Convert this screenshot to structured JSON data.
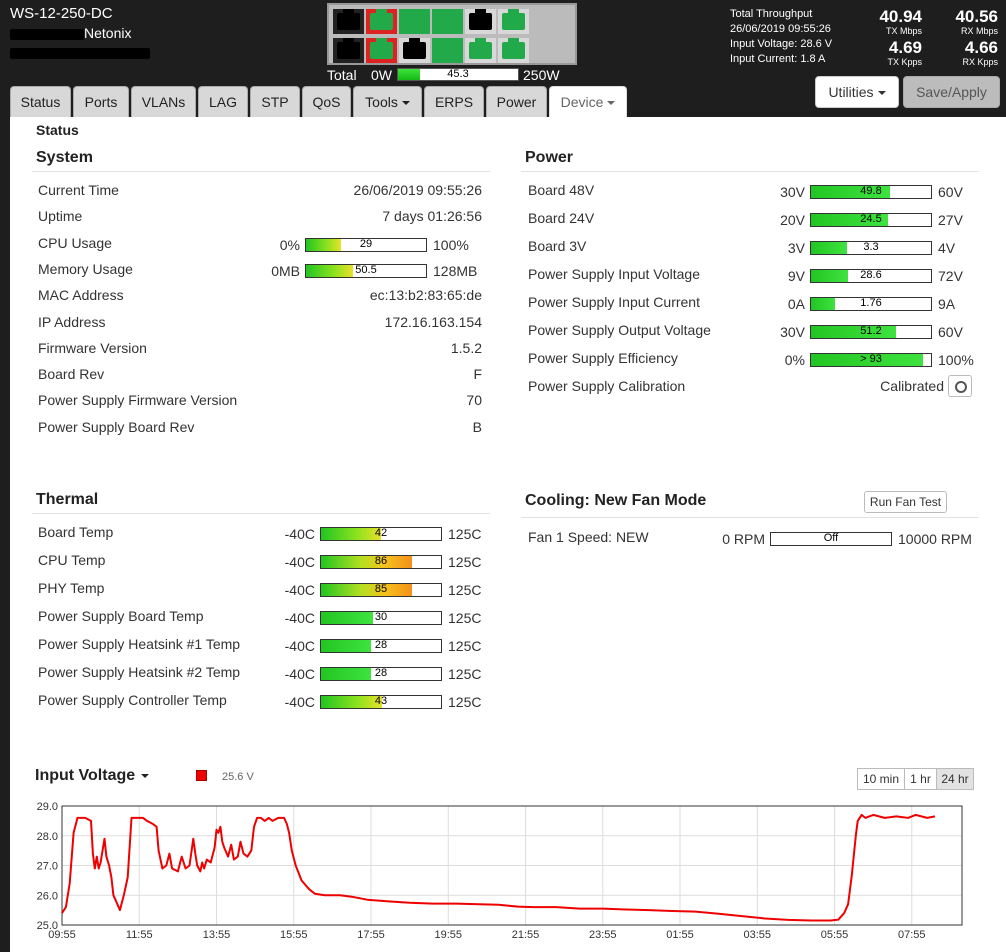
{
  "header": {
    "device_name": "WS-12-250-DC",
    "vendor": "Netonix",
    "power_total_label": "Total",
    "power_min": "0W",
    "power_value": "45.3",
    "power_fraction": 0.181,
    "power_max": "250W",
    "throughput_title": "Total Throughput",
    "datetime": "26/06/2019 09:55:26",
    "input_voltage": "Input Voltage: 28.6 V",
    "input_current": "Input Current: 1.8 A",
    "tx_mbps": "40.94",
    "tx_mbps_unit": "TX Mbps",
    "rx_mbps": "40.56",
    "rx_mbps_unit": "RX Mbps",
    "tx_kpps": "4.69",
    "tx_kpps_unit": "TX Kpps",
    "rx_kpps": "4.66",
    "rx_kpps_unit": "RX Kpps",
    "utilities_label": "Utilities",
    "save_label": "Save/Apply"
  },
  "ports": [
    {
      "color": "#000000",
      "border": "#222222"
    },
    {
      "color": "#22aa4a",
      "border": "#dd2222"
    },
    {
      "color": "#22aa4a",
      "border": "#22aa4a"
    },
    {
      "color": "#22aa4a",
      "border": "#22aa4a"
    },
    {
      "color": "#000000",
      "border": "#d8d8d8"
    },
    {
      "color": "#22aa4a",
      "border": "#d8d8d8"
    },
    {
      "color": "#000000",
      "border": "#222222"
    },
    {
      "color": "#22aa4a",
      "border": "#dd2222"
    },
    {
      "color": "#000000",
      "border": "#d8d8d8"
    },
    {
      "color": "#22aa4a",
      "border": "#22aa4a"
    },
    {
      "color": "#22aa4a",
      "border": "#d8d8d8"
    },
    {
      "color": "#22aa4a",
      "border": "#d8d8d8"
    }
  ],
  "tabs": [
    {
      "label": "Status"
    },
    {
      "label": "Ports"
    },
    {
      "label": "VLANs"
    },
    {
      "label": "LAG"
    },
    {
      "label": "STP"
    },
    {
      "label": "QoS"
    },
    {
      "label": "Tools"
    },
    {
      "label": "ERPS"
    },
    {
      "label": "Power"
    },
    {
      "label": "Device"
    }
  ],
  "page_title": "Status",
  "system": {
    "title": "System",
    "rows": [
      {
        "label": "Current Time",
        "value": "26/06/2019 09:55:26"
      },
      {
        "label": "Uptime",
        "value": "7 days 01:26:56"
      },
      {
        "label": "CPU Usage",
        "min": "0%",
        "bar": "29",
        "fraction": 0.29,
        "max": "100%"
      },
      {
        "label": "Memory Usage",
        "min": "0MB",
        "bar": "50.5",
        "fraction": 0.395,
        "max": "128MB"
      },
      {
        "label": "MAC Address",
        "value": "ec:13:b2:83:65:de"
      },
      {
        "label": "IP Address",
        "value": "172.16.163.154"
      },
      {
        "label": "Firmware Version",
        "value": "1.5.2"
      },
      {
        "label": "Board Rev",
        "value": "F"
      },
      {
        "label": "Power Supply Firmware Version",
        "value": "70"
      },
      {
        "label": "Power Supply Board Rev",
        "value": "B"
      }
    ]
  },
  "power": {
    "title": "Power",
    "rows": [
      {
        "label": "Board 48V",
        "min": "30V",
        "bar": "49.8",
        "fraction": 0.66,
        "max": "60V"
      },
      {
        "label": "Board 24V",
        "min": "20V",
        "bar": "24.5",
        "fraction": 0.64,
        "max": "27V"
      },
      {
        "label": "Board 3V",
        "min": "3V",
        "bar": "3.3",
        "fraction": 0.3,
        "max": "4V"
      },
      {
        "label": "Power Supply Input Voltage",
        "min": "9V",
        "bar": "28.6",
        "fraction": 0.31,
        "max": "72V"
      },
      {
        "label": "Power Supply Input Current",
        "min": "0A",
        "bar": "1.76",
        "fraction": 0.2,
        "max": "9A"
      },
      {
        "label": "Power Supply Output Voltage",
        "min": "30V",
        "bar": "51.2",
        "fraction": 0.71,
        "max": "60V"
      },
      {
        "label": "Power Supply Efficiency",
        "min": "0%",
        "bar": "> 93",
        "fraction": 0.93,
        "max": "100%"
      },
      {
        "label": "Power Supply Calibration",
        "value": "Calibrated"
      }
    ]
  },
  "thermal": {
    "title": "Thermal",
    "rows": [
      {
        "label": "Board Temp",
        "min": "-40C",
        "bar": "42",
        "fraction": 0.5,
        "max": "125C",
        "style": "gy"
      },
      {
        "label": "CPU Temp",
        "min": "-40C",
        "bar": "86",
        "fraction": 0.76,
        "max": "125C",
        "style": "go"
      },
      {
        "label": "PHY Temp",
        "min": "-40C",
        "bar": "85",
        "fraction": 0.76,
        "max": "125C",
        "style": "go"
      },
      {
        "label": "Power Supply Board Temp",
        "min": "-40C",
        "bar": "30",
        "fraction": 0.43,
        "max": "125C",
        "style": "g"
      },
      {
        "label": "Power Supply Heatsink #1 Temp",
        "min": "-40C",
        "bar": "28",
        "fraction": 0.42,
        "max": "125C",
        "style": "g"
      },
      {
        "label": "Power Supply Heatsink #2 Temp",
        "min": "-40C",
        "bar": "28",
        "fraction": 0.42,
        "max": "125C",
        "style": "g"
      },
      {
        "label": "Power Supply Controller Temp",
        "min": "-40C",
        "bar": "43",
        "fraction": 0.51,
        "max": "125C",
        "style": "gy"
      }
    ]
  },
  "cooling": {
    "title": "Cooling: New Fan Mode",
    "run_test_label": "Run Fan Test",
    "fan_label": "Fan 1 Speed: NEW",
    "min": "0 RPM",
    "bar": "Off",
    "fraction": 0,
    "max": "10000 RPM"
  },
  "chart_controls": {
    "title": "Input Voltage",
    "legend_value": "25.6 V",
    "legend_color": "#ee0000",
    "ranges": [
      {
        "label": "10 min"
      },
      {
        "label": "1 hr"
      },
      {
        "label": "24 hr"
      }
    ],
    "active_range": "24 hr"
  },
  "chart_data": {
    "type": "line",
    "ylim": [
      25.0,
      29.0
    ],
    "y_ticks": [
      "29.0",
      "28.0",
      "27.0",
      "26.0",
      "25.0"
    ],
    "x_ticks": [
      "09:55",
      "11:55",
      "13:55",
      "15:55",
      "17:55",
      "19:55",
      "21:55",
      "23:55",
      "01:55",
      "03:55",
      "05:55",
      "07:55"
    ],
    "series": [
      {
        "color": "#ee0000",
        "points": [
          [
            0,
            25.4
          ],
          [
            0.1,
            25.6
          ],
          [
            0.2,
            26.4
          ],
          [
            0.3,
            28.1
          ],
          [
            0.4,
            28.6
          ],
          [
            0.6,
            28.6
          ],
          [
            0.75,
            28.5
          ],
          [
            0.8,
            27.4
          ],
          [
            0.85,
            26.9
          ],
          [
            0.9,
            27.3
          ],
          [
            0.95,
            26.9
          ],
          [
            1.0,
            27.1
          ],
          [
            1.1,
            27.9
          ],
          [
            1.15,
            27.3
          ],
          [
            1.22,
            27.0
          ],
          [
            1.28,
            26.6
          ],
          [
            1.33,
            26.0
          ],
          [
            1.4,
            25.8
          ],
          [
            1.5,
            25.5
          ],
          [
            1.6,
            26.0
          ],
          [
            1.7,
            26.6
          ],
          [
            1.8,
            28.6
          ],
          [
            1.95,
            28.6
          ],
          [
            2.1,
            28.6
          ],
          [
            2.2,
            28.5
          ],
          [
            2.35,
            28.4
          ],
          [
            2.45,
            28.3
          ],
          [
            2.5,
            27.5
          ],
          [
            2.6,
            26.9
          ],
          [
            2.7,
            27.0
          ],
          [
            2.78,
            27.4
          ],
          [
            2.85,
            26.9
          ],
          [
            3.0,
            26.8
          ],
          [
            3.1,
            27.3
          ],
          [
            3.2,
            26.9
          ],
          [
            3.3,
            27.0
          ],
          [
            3.4,
            27.9
          ],
          [
            3.45,
            27.4
          ],
          [
            3.5,
            27.0
          ],
          [
            3.58,
            26.8
          ],
          [
            3.63,
            27.1
          ],
          [
            3.68,
            26.9
          ],
          [
            3.75,
            27.2
          ],
          [
            3.85,
            27.1
          ],
          [
            3.95,
            27.6
          ],
          [
            4.0,
            28.2
          ],
          [
            4.05,
            28.1
          ],
          [
            4.1,
            28.3
          ],
          [
            4.15,
            27.8
          ],
          [
            4.2,
            27.6
          ],
          [
            4.3,
            27.3
          ],
          [
            4.38,
            27.7
          ],
          [
            4.45,
            27.2
          ],
          [
            4.55,
            27.3
          ],
          [
            4.62,
            27.8
          ],
          [
            4.7,
            27.4
          ],
          [
            4.8,
            27.3
          ],
          [
            4.9,
            27.5
          ],
          [
            4.97,
            28.3
          ],
          [
            5.05,
            28.6
          ],
          [
            5.15,
            28.6
          ],
          [
            5.25,
            28.5
          ],
          [
            5.35,
            28.6
          ],
          [
            5.45,
            28.5
          ],
          [
            5.6,
            28.6
          ],
          [
            5.75,
            28.6
          ],
          [
            5.82,
            28.4
          ],
          [
            5.88,
            28.1
          ],
          [
            5.95,
            27.5
          ],
          [
            6.05,
            27.0
          ],
          [
            6.2,
            26.5
          ],
          [
            6.4,
            26.2
          ],
          [
            6.55,
            26.05
          ],
          [
            6.8,
            26.0
          ],
          [
            7.2,
            26.0
          ],
          [
            7.5,
            25.95
          ],
          [
            7.9,
            25.85
          ],
          [
            8.4,
            25.8
          ],
          [
            9.0,
            25.75
          ],
          [
            9.6,
            25.72
          ],
          [
            10.2,
            25.72
          ],
          [
            10.8,
            25.7
          ],
          [
            11.3,
            25.68
          ],
          [
            11.8,
            25.62
          ],
          [
            12.2,
            25.6
          ],
          [
            12.8,
            25.6
          ],
          [
            13.4,
            25.55
          ],
          [
            14.0,
            25.55
          ],
          [
            14.6,
            25.52
          ],
          [
            15.2,
            25.5
          ],
          [
            15.8,
            25.47
          ],
          [
            16.4,
            25.45
          ],
          [
            17.0,
            25.38
          ],
          [
            17.6,
            25.3
          ],
          [
            18.2,
            25.22
          ],
          [
            18.8,
            25.17
          ],
          [
            19.4,
            25.15
          ],
          [
            19.9,
            25.15
          ],
          [
            20.1,
            25.18
          ],
          [
            20.25,
            25.4
          ],
          [
            20.35,
            25.7
          ],
          [
            20.45,
            26.7
          ],
          [
            20.55,
            28.0
          ],
          [
            20.6,
            28.5
          ],
          [
            20.7,
            28.7
          ],
          [
            20.8,
            28.6
          ],
          [
            21.0,
            28.7
          ],
          [
            21.3,
            28.6
          ],
          [
            21.6,
            28.65
          ],
          [
            21.9,
            28.6
          ],
          [
            22.1,
            28.7
          ],
          [
            22.4,
            28.6
          ],
          [
            22.6,
            28.65
          ]
        ]
      }
    ]
  }
}
